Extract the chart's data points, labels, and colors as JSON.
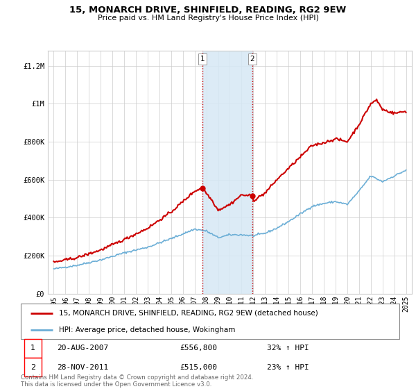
{
  "title": "15, MONARCH DRIVE, SHINFIELD, READING, RG2 9EW",
  "subtitle": "Price paid vs. HM Land Registry's House Price Index (HPI)",
  "legend_line1": "15, MONARCH DRIVE, SHINFIELD, READING, RG2 9EW (detached house)",
  "legend_line2": "HPI: Average price, detached house, Wokingham",
  "transaction1_date": "20-AUG-2007",
  "transaction1_price": "£556,800",
  "transaction1_hpi": "32% ↑ HPI",
  "transaction2_date": "28-NOV-2011",
  "transaction2_price": "£515,000",
  "transaction2_hpi": "23% ↑ HPI",
  "footer": "Contains HM Land Registry data © Crown copyright and database right 2024.\nThis data is licensed under the Open Government Licence v3.0.",
  "hpi_color": "#6baed6",
  "price_color": "#cc0000",
  "highlight_color": "#d6e8f5",
  "transaction1_x": 2007.65,
  "transaction2_x": 2011.92,
  "transaction1_y": 556800,
  "transaction2_y": 515000,
  "ylim": [
    0,
    1280000
  ],
  "xlim_start": 1994.5,
  "xlim_end": 2025.5,
  "yticks": [
    0,
    200000,
    400000,
    600000,
    800000,
    1000000,
    1200000
  ],
  "ytick_labels": [
    "£0",
    "£200K",
    "£400K",
    "£600K",
    "£800K",
    "£1M",
    "£1.2M"
  ],
  "xticks": [
    1995,
    1996,
    1997,
    1998,
    1999,
    2000,
    2001,
    2002,
    2003,
    2004,
    2005,
    2006,
    2007,
    2008,
    2009,
    2010,
    2011,
    2012,
    2013,
    2014,
    2015,
    2016,
    2017,
    2018,
    2019,
    2020,
    2021,
    2022,
    2023,
    2024,
    2025
  ]
}
